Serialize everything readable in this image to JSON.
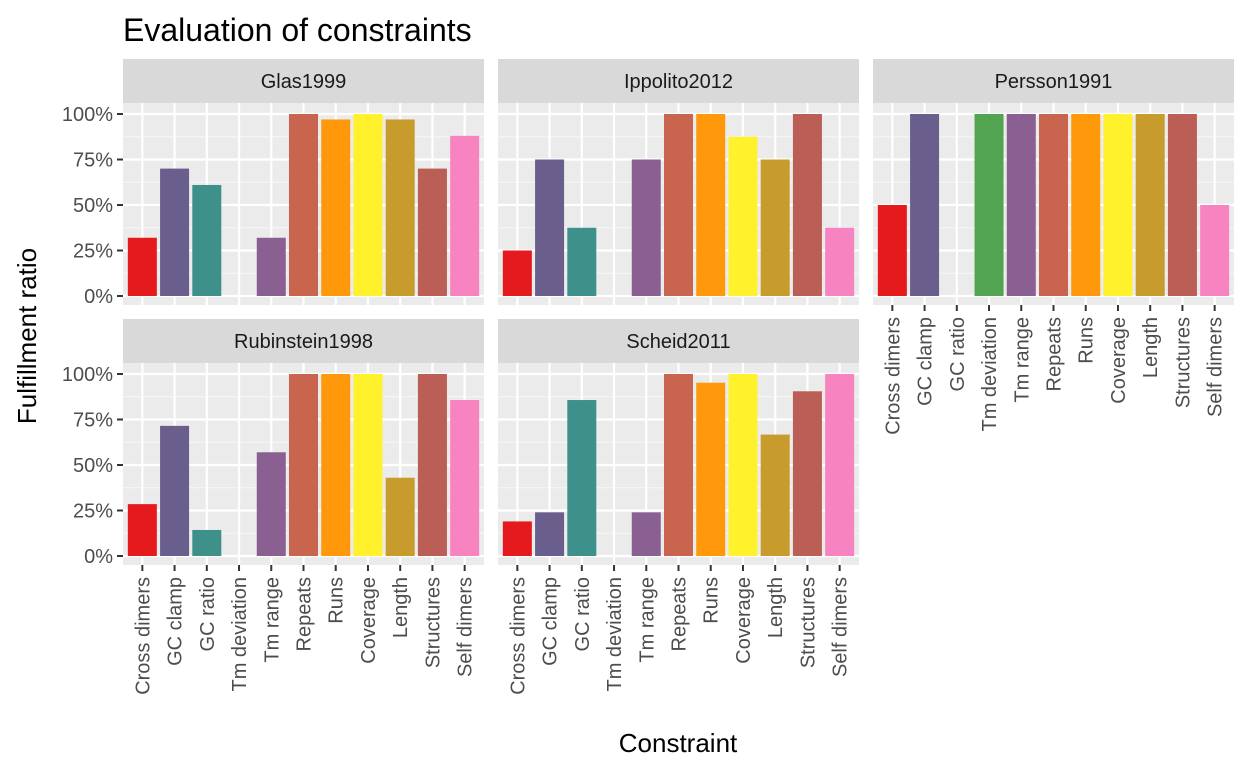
{
  "chart_data": {
    "type": "bar",
    "title": "Evaluation of constraints",
    "xlabel": "Constraint",
    "ylabel": "Fulfillment ratio",
    "ylim": [
      0,
      1.25
    ],
    "y_ticks": [
      0,
      0.25,
      0.5,
      0.75,
      1.0
    ],
    "y_tick_labels": [
      "0%",
      "25%",
      "50%",
      "75%",
      "100%"
    ],
    "grid": true,
    "facet_layout": "3 columns, 2 rows",
    "categories": [
      "Cross dimers",
      "GC clamp",
      "GC ratio",
      "Tm deviation",
      "Tm range",
      "Repeats",
      "Runs",
      "Coverage",
      "Length",
      "Structures",
      "Self dimers"
    ],
    "category_colors": [
      "#E41A1C",
      "#6A5F8C",
      "#3E918A",
      "#52A451",
      "#8A5F91",
      "#C9644F",
      "#FF980A",
      "#FFF12C",
      "#C89B2D",
      "#BB5E55",
      "#F784C0"
    ],
    "panels": [
      {
        "name": "Glas1999",
        "values": [
          0.32,
          0.7,
          0.61,
          0,
          0.32,
          1.0,
          0.97,
          1.0,
          0.97,
          0.7,
          0.88
        ]
      },
      {
        "name": "Ippolito2012",
        "values": [
          0.25,
          0.75,
          0.375,
          0,
          0.75,
          1.0,
          1.0,
          0.875,
          0.75,
          1.0,
          0.375
        ]
      },
      {
        "name": "Persson1991",
        "values": [
          0.5,
          1.0,
          0,
          1.0,
          1.0,
          1.0,
          1.0,
          1.0,
          1.0,
          1.0,
          0.5
        ]
      },
      {
        "name": "Rubinstein1998",
        "values": [
          0.285,
          0.715,
          0.143,
          0,
          0.57,
          1.0,
          1.0,
          1.0,
          0.43,
          1.0,
          0.857
        ]
      },
      {
        "name": "Scheid2011",
        "values": [
          0.19,
          0.24,
          0.857,
          0,
          0.24,
          1.0,
          0.952,
          1.0,
          0.667,
          0.905,
          1.0
        ]
      }
    ]
  }
}
